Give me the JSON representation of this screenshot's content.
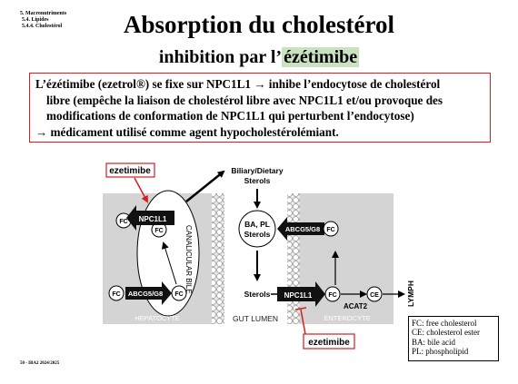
{
  "breadcrumb": [
    "5. Macronutriments",
    "5.4. Lipides",
    "5.4.4. Cholestérol"
  ],
  "title": "Absorption du cholestérol",
  "subtitle_prefix": "inhibition par l’",
  "subtitle_highlight": "ézétimibe",
  "paragraph": {
    "l1": "L’ézétimibe (ezetrol®) se fixe sur NPC1L1 → inhibe l’endocytose de cholestérol",
    "l2": "libre (empêche la liaison de cholestérol libre avec NPC1L1 et/ou provoque des",
    "l3": "modifications de conformation de NPC1L1 qui perturbent l’endocytose)",
    "l4": "→ médicament utilisé comme agent hypocholestérolémiant."
  },
  "diagram": {
    "ezetimibe_label": "ezetimibe",
    "biliary_line1": "Biliary/Dietary",
    "biliary_line2": "Sterols",
    "fc": "FC",
    "ce": "CE",
    "npc1l1": "NPC1L1",
    "abcg5g8": "ABCG5/G8",
    "canalicular_bile": "CANALICULAR BILE",
    "ba_pl_l1": "BA, PL",
    "ba_pl_l2": "Sterols",
    "sterols": "Sterols",
    "acat2": "ACAT2",
    "lymph": "LYMPH",
    "hepatocyte": "HEPATOCYTE",
    "gut_lumen": "GUT LUMEN",
    "enterocyte": "ENTEROCYTE"
  },
  "legend": [
    "FC: free cholesterol",
    "CE: cholesterol ester",
    "BA: bile acid",
    "PL: phospholipid"
  ],
  "footer": "50 - IBA2 2024/2025",
  "colors": {
    "accent_red": "#d21f1f",
    "highlight_green": "#c9e3c2",
    "cell_gray": "#d4d4d4"
  }
}
